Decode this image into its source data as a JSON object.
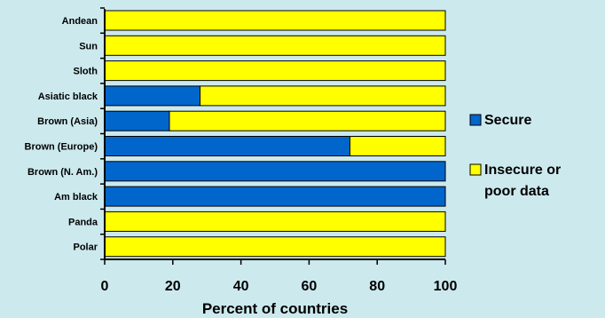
{
  "chart_data": {
    "type": "bar",
    "orientation": "horizontal",
    "stacked": true,
    "categories": [
      "Andean",
      "Sun",
      "Sloth",
      "Asiatic black",
      "Brown (Asia)",
      "Brown (Europe)",
      "Brown (N. Am.)",
      "Am black",
      "Panda",
      "Polar"
    ],
    "series": [
      {
        "name": "Secure",
        "color": "#0066cc",
        "values": [
          0,
          0,
          0,
          28,
          19,
          72,
          100,
          100,
          0,
          0
        ]
      },
      {
        "name": "Insecure or poor data",
        "color": "#ffff00",
        "values": [
          100,
          100,
          100,
          72,
          81,
          28,
          0,
          0,
          100,
          100
        ]
      }
    ],
    "xlabel": "Percent of countries",
    "xlim": [
      0,
      100
    ],
    "xticks": [
      "0",
      "20",
      "40",
      "60",
      "80",
      "100"
    ],
    "legend": {
      "placement": "right",
      "entries": [
        {
          "lines": [
            "Secure"
          ]
        },
        {
          "lines": [
            "Insecure or",
            "poor data"
          ]
        }
      ]
    },
    "grid": false
  }
}
